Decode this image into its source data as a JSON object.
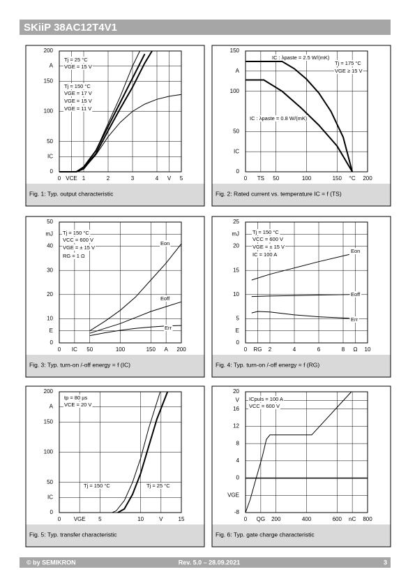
{
  "header": {
    "title": "SKiiP 38AC12T4V1"
  },
  "footer": {
    "left": "© by SEMIKRON",
    "center": "Rev. 5.0 – 28.09.2021",
    "right": "3"
  },
  "chart_data": [
    {
      "type": "line",
      "title": "Fig. 1: Typ. output characteristic",
      "xlim": [
        0,
        5
      ],
      "xticks": [
        0,
        {
          "value": 0.5,
          "label": "VCE"
        },
        1,
        2,
        3,
        4,
        {
          "value": 4.5,
          "label": "V"
        },
        5
      ],
      "ylim": [
        0,
        200
      ],
      "yticks": [
        0,
        {
          "value": 25,
          "label": "IC"
        },
        50,
        100,
        150,
        {
          "value": 175,
          "label": "A"
        },
        200
      ],
      "grid": true,
      "annotations": [
        "Tj = 25 °C",
        "VGE = 15 V",
        "Tj = 150 °C",
        "VGE = 17 V",
        "VGE = 15 V",
        "VGE = 11 V"
      ],
      "series": [
        {
          "color": "#000000",
          "bold": true,
          "x": [
            0,
            0.7,
            1,
            1.5,
            2,
            2.5,
            3,
            3.5
          ],
          "values": [
            0,
            0,
            8,
            35,
            75,
            115,
            155,
            195
          ]
        },
        {
          "color": "#000000",
          "bold": false,
          "x": [
            0,
            0.7,
            1,
            1.5,
            2,
            2.5,
            3,
            3.3
          ],
          "values": [
            0,
            0,
            5,
            35,
            80,
            125,
            175,
            200
          ]
        },
        {
          "color": "#000000",
          "bold": true,
          "x": [
            0,
            0.7,
            1,
            1.5,
            2,
            2.5,
            3,
            3.5,
            3.8
          ],
          "values": [
            0,
            0,
            5,
            30,
            68,
            105,
            140,
            180,
            200
          ]
        },
        {
          "color": "#000000",
          "bold": false,
          "x": [
            0,
            0.7,
            1,
            1.5,
            2,
            2.5,
            3,
            3.5,
            4,
            4.5,
            5
          ],
          "values": [
            0,
            0,
            5,
            28,
            58,
            82,
            100,
            112,
            120,
            125,
            128
          ]
        }
      ]
    },
    {
      "type": "line",
      "title": "Fig. 2: Rated current vs. temperature IC = f (TS)",
      "xlim": [
        0,
        200
      ],
      "xticks": [
        0,
        {
          "value": 25,
          "label": "TS"
        },
        50,
        100,
        150,
        {
          "value": 175,
          "label": "°C"
        },
        200
      ],
      "ylim": [
        0,
        150
      ],
      "yticks": [
        0,
        {
          "value": 25,
          "label": "IC"
        },
        50,
        100,
        {
          "value": 125,
          "label": "A"
        },
        150
      ],
      "grid": true,
      "annotations": [
        "IC : λpaste = 2.5 W/(mK)",
        "Tj = 175 °C",
        "VGE ≥ 15 V",
        "IC : λpaste = 0.8 W/(mK)"
      ],
      "series": [
        {
          "color": "#000000",
          "bold": true,
          "x": [
            0,
            60,
            80,
            100,
            120,
            140,
            160,
            175
          ],
          "values": [
            137,
            137,
            128,
            115,
            98,
            75,
            43,
            0
          ]
        },
        {
          "color": "#000000",
          "bold": true,
          "x": [
            0,
            30,
            60,
            90,
            120,
            150,
            175
          ],
          "values": [
            114,
            114,
            100,
            80,
            58,
            32,
            0
          ]
        }
      ]
    },
    {
      "type": "line",
      "title": "Fig. 3: Typ. turn-on /-off energy = f (IC)",
      "xlim": [
        0,
        200
      ],
      "xticks": [
        0,
        {
          "value": 25,
          "label": "IC"
        },
        50,
        100,
        150,
        {
          "value": 175,
          "label": "A"
        },
        200
      ],
      "ylim": [
        0,
        50
      ],
      "yticks": [
        0,
        {
          "value": 5,
          "label": "E"
        },
        10,
        20,
        30,
        40,
        {
          "value": 45,
          "label": "mJ"
        },
        50
      ],
      "grid": true,
      "annotations": [
        "Tj = 150 °C",
        "VCC = 600 V",
        "VGE = ± 15 V",
        "RG = 1 Ω",
        "Eon",
        "Eoff",
        "Err"
      ],
      "series": [
        {
          "color": "#000000",
          "bold": false,
          "x": [
            50,
            75,
            100,
            125,
            150,
            175,
            200
          ],
          "values": [
            5,
            9,
            13.5,
            19,
            26,
            33,
            41
          ]
        },
        {
          "color": "#000000",
          "bold": false,
          "x": [
            50,
            75,
            100,
            125,
            150,
            175,
            200
          ],
          "values": [
            4,
            6,
            8,
            10.5,
            13,
            15,
            17
          ]
        },
        {
          "color": "#000000",
          "bold": false,
          "x": [
            50,
            75,
            100,
            125,
            150,
            175,
            200
          ],
          "values": [
            3,
            4.2,
            5.2,
            6,
            6.6,
            7,
            7.2
          ]
        }
      ]
    },
    {
      "type": "line",
      "title": "Fig. 4: Typ. turn-on /-off energy = f (RG)",
      "xlim": [
        0,
        10
      ],
      "xticks": [
        0,
        {
          "value": 1,
          "label": "RG"
        },
        2,
        4,
        6,
        8,
        {
          "value": 9,
          "label": "Ω"
        },
        10
      ],
      "ylim": [
        0,
        25
      ],
      "yticks": [
        0,
        {
          "value": 2.5,
          "label": "E"
        },
        5,
        10,
        15,
        20,
        {
          "value": 22.5,
          "label": "mJ"
        },
        25
      ],
      "grid": true,
      "annotations": [
        "Tj = 150 °C",
        "VCC = 600 V",
        "VGE = ± 15 V",
        "IC = 100 A",
        "Eon",
        "Eoff",
        "Err"
      ],
      "series": [
        {
          "color": "#000000",
          "bold": false,
          "x": [
            0.5,
            2,
            4,
            6,
            8.5
          ],
          "values": [
            13,
            14.2,
            15.5,
            16.8,
            18.3
          ]
        },
        {
          "color": "#000000",
          "bold": false,
          "x": [
            0.5,
            2,
            4,
            6,
            8.5
          ],
          "values": [
            9.6,
            9.7,
            9.8,
            9.9,
            10
          ]
        },
        {
          "color": "#000000",
          "bold": false,
          "x": [
            0.5,
            1,
            2,
            4,
            6,
            8.5
          ],
          "values": [
            6.2,
            6.5,
            6.4,
            5.8,
            5.4,
            5.1
          ]
        }
      ]
    },
    {
      "type": "line",
      "title": "Fig. 5: Typ. transfer characteristic",
      "xlim": [
        0,
        15
      ],
      "xticks": [
        0,
        {
          "value": 2.5,
          "label": "VGE"
        },
        5,
        10,
        {
          "value": 12.5,
          "label": "V"
        },
        15
      ],
      "ylim": [
        0,
        200
      ],
      "yticks": [
        0,
        {
          "value": 25,
          "label": "IC"
        },
        50,
        100,
        150,
        {
          "value": 175,
          "label": "A"
        },
        200
      ],
      "grid": true,
      "annotations": [
        "tp = 80 µs",
        "VCE = 20 V",
        "Tj = 150 °C",
        "Tj = 25 °C"
      ],
      "series": [
        {
          "color": "#000000",
          "bold": false,
          "x": [
            6.5,
            7,
            8,
            9,
            10,
            11,
            12.4
          ],
          "values": [
            0,
            3,
            20,
            50,
            90,
            140,
            200
          ]
        },
        {
          "color": "#000000",
          "bold": true,
          "x": [
            7.2,
            8,
            9,
            10,
            11,
            12,
            13.3
          ],
          "values": [
            0,
            6,
            30,
            65,
            110,
            155,
            200
          ]
        }
      ]
    },
    {
      "type": "line",
      "title": "Fig. 6: Typ. gate charge characteristic",
      "xlim": [
        0,
        800
      ],
      "xticks": [
        0,
        {
          "value": 100,
          "label": "QG"
        },
        200,
        400,
        600,
        {
          "value": 700,
          "label": "nC"
        },
        800
      ],
      "ylim": [
        -8,
        20
      ],
      "yticks": [
        -8,
        {
          "value": -4,
          "label": "VGE"
        },
        0,
        4,
        8,
        12,
        16,
        {
          "value": 18,
          "label": "V"
        },
        20
      ],
      "grid": true,
      "zero_line": true,
      "annotations": [
        "ICpuls = 100 A",
        "VCC = 600 V"
      ],
      "series": [
        {
          "color": "#000000",
          "bold": false,
          "x": [
            0,
            30,
            70,
            110,
            137,
            160,
            434,
            694
          ],
          "values": [
            -8,
            -5,
            0,
            5,
            9,
            10,
            10,
            20
          ]
        }
      ]
    }
  ]
}
